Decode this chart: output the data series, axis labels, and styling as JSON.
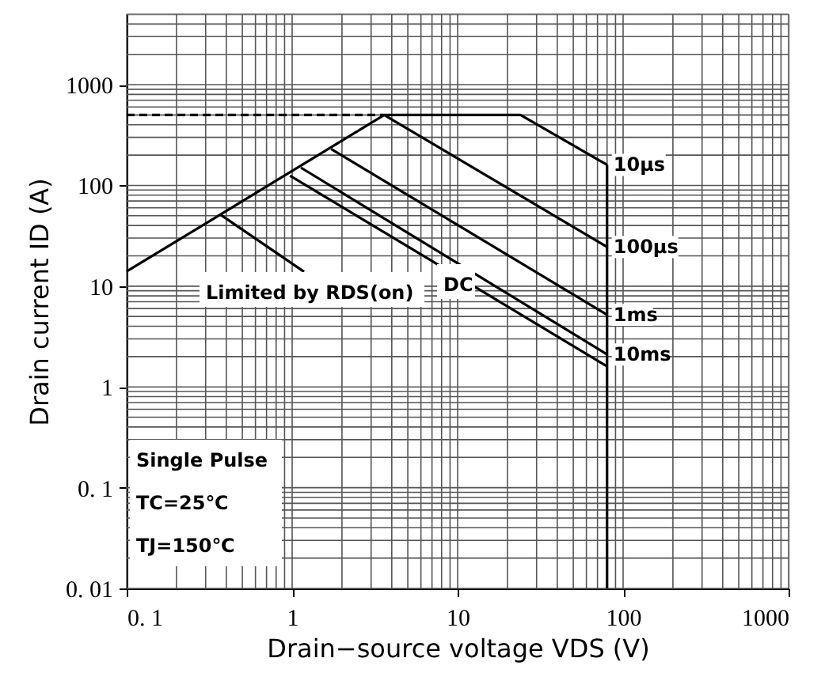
{
  "chart_data": {
    "type": "line",
    "xlabel": "Drain−source voltage VDS (V)",
    "ylabel": "Drain current ID (A)",
    "log": "xy",
    "grid": true,
    "marker": "none",
    "xlim": [
      0.1,
      1000
    ],
    "xticks": [
      {
        "value": 0.1,
        "label": "0. 1"
      },
      1,
      10,
      100,
      1000
    ],
    "ylim": [
      0.01,
      5000
    ],
    "yticks": [
      {
        "value": 0.01,
        "label": "0. 01"
      },
      {
        "value": 0.1,
        "label": "0. 1"
      },
      1,
      10,
      100,
      1000
    ],
    "series": [
      {
        "color": "#000000",
        "line_style": "dashed",
        "x": [
          0.1,
          3.6
        ],
        "values": [
          500,
          500
        ]
      },
      {
        "color": "#000000",
        "line_style": "solid",
        "x": [
          0.1,
          3.6
        ],
        "values": [
          14,
          500
        ]
      },
      {
        "name": "10µs",
        "color": "#000000",
        "line_style": "solid",
        "x": [
          3.6,
          24,
          80
        ],
        "values": [
          500,
          500,
          160
        ]
      },
      {
        "name": "100µs",
        "color": "#000000",
        "line_style": "solid",
        "x": [
          3.6,
          80
        ],
        "values": [
          500,
          24.5
        ]
      },
      {
        "name": "1ms",
        "color": "#000000",
        "line_style": "solid",
        "x": [
          1.72,
          80
        ],
        "values": [
          230,
          5.2
        ]
      },
      {
        "name": "10ms",
        "color": "#000000",
        "line_style": "solid",
        "x": [
          1.13,
          80
        ],
        "values": [
          150,
          2.1
        ]
      },
      {
        "color": "#000000",
        "line_style": "solid",
        "x": [
          0.97,
          80
        ],
        "values": [
          125,
          1.6
        ]
      },
      {
        "color": "#000000",
        "line_style": "solid",
        "x": [
          80,
          80
        ],
        "values": [
          160,
          0.01
        ]
      },
      {
        "color": "#000000",
        "line_style": "solid",
        "x": [
          0.37,
          1.18
        ],
        "values": [
          51,
          13.9
        ]
      }
    ],
    "annotations": [
      "Limited by RDS(on)",
      "DC",
      "Single Pulse",
      "TC=25℃",
      "TJ=150℃"
    ]
  }
}
